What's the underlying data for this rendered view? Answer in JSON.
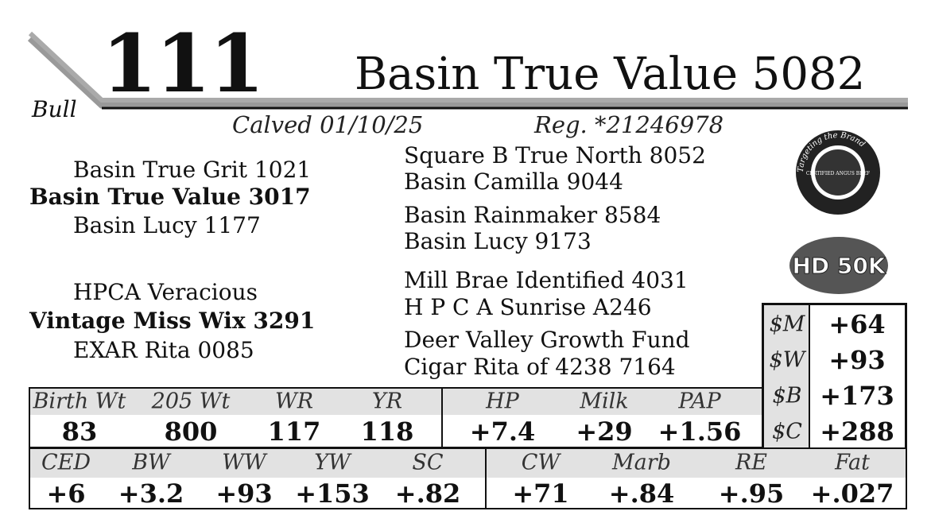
{
  "header": {
    "lot": "111",
    "sex": "Bull",
    "name": "Basin True Value 5082",
    "calved": "Calved 01/10/25",
    "registration": "Reg. *21246978"
  },
  "pedigree": {
    "sire_sire": "Basin True Grit 1021",
    "sire": "Basin True Value 3017",
    "sire_dam": "Basin Lucy 1177",
    "dam_sire": "HPCA Veracious",
    "dam": "Vintage Miss Wix 3291",
    "dam_dam": "EXAR Rita 0085",
    "outer": [
      "Square B True North 8052",
      "Basin Camilla 9044",
      "Basin Rainmaker 8584",
      "Basin Lucy 9173",
      "Mill Brae Identified 4031",
      "H P C A Sunrise A246",
      "Deer Valley Growth Fund",
      "Cigar Rita of 4238 7164"
    ]
  },
  "badges": {
    "cab_ring": "Targeting the Brand",
    "cab_center": "CERTIFIED ANGUS BEEF",
    "genomic": "HD 50K"
  },
  "indexes": [
    [
      "$M",
      "+64"
    ],
    [
      "$W",
      "+93"
    ],
    [
      "$B",
      "+173"
    ],
    [
      "$C",
      "+288"
    ]
  ],
  "performance": {
    "headers": [
      "Birth Wt",
      "205 Wt",
      "WR",
      "YR",
      "HP",
      "Milk",
      "PAP"
    ],
    "values": [
      "83",
      "800",
      "117",
      "118",
      "+7.4",
      "+29",
      "+1.56"
    ]
  },
  "epds": {
    "headers": [
      "CED",
      "BW",
      "WW",
      "YW",
      "SC",
      "CW",
      "Marb",
      "RE",
      "Fat"
    ],
    "values": [
      "+6",
      "+3.2",
      "+93",
      "+153",
      "+.82",
      "+71",
      "+.84",
      "+.95",
      "+.027"
    ]
  }
}
